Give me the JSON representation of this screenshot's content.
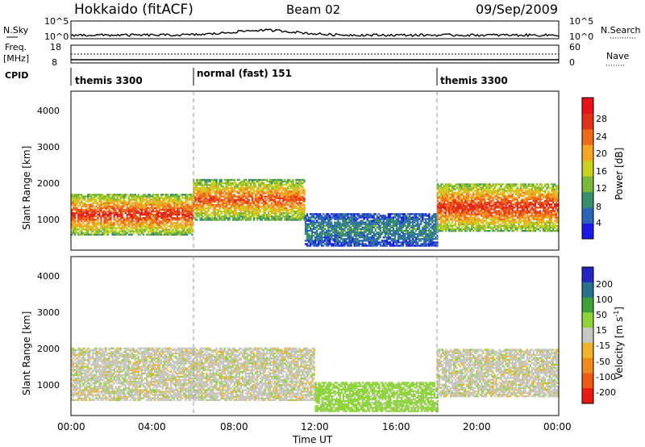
{
  "header": {
    "station": "Hokkaido (fitACF)",
    "beam": "Beam 02",
    "date": "09/Sep/2009"
  },
  "strip": {
    "nsky_label": "N.Sky",
    "nsky_ticks": [
      "10^5",
      "10^0"
    ],
    "nsearch_ticks": [
      "10^5",
      "10^0"
    ],
    "nsearch_label": "N.Search",
    "freq_label": "Freq.",
    "freq_unit": "[MHz]",
    "freq_ticks": [
      "18",
      "8"
    ],
    "nave_ticks": [
      "60",
      "0"
    ],
    "nave_label": "Nave",
    "cpid_label": "CPID",
    "modes": [
      {
        "label": "themis 3300",
        "start_h": 0
      },
      {
        "label": "normal (fast) 151",
        "start_h": 6
      },
      {
        "label": "themis 3300",
        "start_h": 18
      }
    ]
  },
  "panels": {
    "ylabel": "Slant Range [km]",
    "xlabel": "Time UT",
    "yticks": [
      "1000",
      "2000",
      "3000",
      "4000"
    ],
    "xticks": [
      "00:00",
      "04:00",
      "08:00",
      "12:00",
      "16:00",
      "20:00",
      "00:00"
    ]
  },
  "power_cbar": {
    "title": "Power [dB]",
    "ticks": [
      "4",
      "8",
      "12",
      "16",
      "20",
      "24",
      "28"
    ],
    "colors": [
      "#1a1ae6",
      "#2d66b8",
      "#3a8f6a",
      "#7ab83a",
      "#c8d21e",
      "#f5a623",
      "#ee6a1a",
      "#e23219",
      "#e8121a"
    ]
  },
  "velocity_cbar": {
    "title": "Velocity [m s",
    "title_sup": "-1",
    "title_end": "]",
    "ticks": [
      "200",
      "100",
      "50",
      "15",
      "-15",
      "-50",
      "-100",
      "-200"
    ],
    "colors": [
      "#2326c2",
      "#2a6f8c",
      "#3fa03a",
      "#8ed43a",
      "#c8c8c0",
      "#f0b428",
      "#f08a1e",
      "#ee5a14",
      "#e81a12"
    ]
  },
  "chart_data": {
    "type": "heatmap",
    "x_range_hours": [
      0,
      24
    ],
    "y_range_km": [
      200,
      4500
    ],
    "ylabel": "Slant Range [km]",
    "xlabel": "Time UT",
    "grid": false,
    "mode_change_hours": [
      6,
      18
    ],
    "power_bands": [
      {
        "from_h": 0,
        "to_h": 6,
        "range_km": [
          600,
          1700
        ],
        "level_db": 24
      },
      {
        "from_h": 6,
        "to_h": 11.5,
        "range_km": [
          1000,
          2100
        ],
        "level_db": 22
      },
      {
        "from_h": 11.5,
        "to_h": 18,
        "range_km": [
          300,
          1200
        ],
        "level_db": 8
      },
      {
        "from_h": 18,
        "to_h": 24,
        "range_km": [
          700,
          2000
        ],
        "level_db": 24
      }
    ],
    "velocity_bands": [
      {
        "from_h": 0,
        "to_h": 12,
        "range_km": [
          600,
          2000
        ],
        "velocity_ms": 0
      },
      {
        "from_h": 12,
        "to_h": 18,
        "range_km": [
          300,
          1100
        ],
        "velocity_ms": 30
      },
      {
        "from_h": 18,
        "to_h": 24,
        "range_km": [
          700,
          2000
        ],
        "velocity_ms": 0
      }
    ]
  }
}
